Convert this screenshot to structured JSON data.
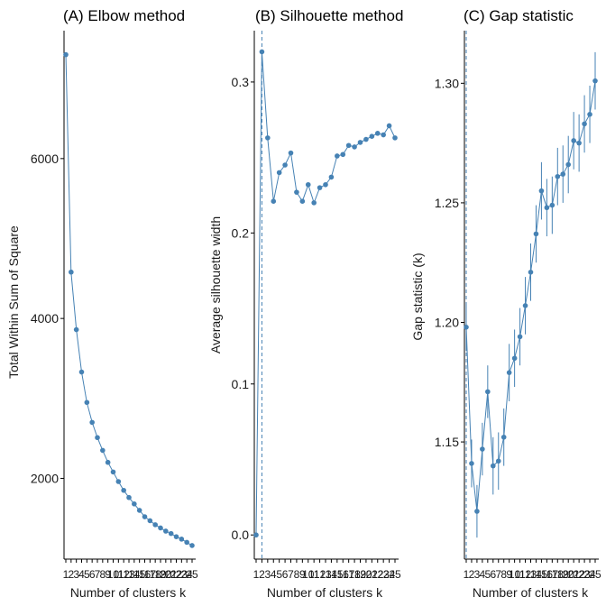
{
  "colors": {
    "series": "#4682b4",
    "axis": "#000000",
    "text": "#1a1a1a"
  },
  "chart_data": [
    {
      "type": "line",
      "title": "(A) Elbow method",
      "xlabel": "Number of clusters k",
      "ylabel": "Total Within Sum of Square",
      "x": [
        "1",
        "2",
        "3",
        "4",
        "5",
        "6",
        "7",
        "8",
        "9",
        "10",
        "11",
        "12",
        "13",
        "14",
        "15",
        "16",
        "17",
        "18",
        "19",
        "20",
        "21",
        "22",
        "23",
        "24",
        "25"
      ],
      "values": [
        7300,
        4580,
        3860,
        3330,
        2950,
        2700,
        2510,
        2350,
        2200,
        2080,
        1960,
        1850,
        1760,
        1680,
        1600,
        1520,
        1470,
        1420,
        1380,
        1340,
        1310,
        1270,
        1240,
        1200,
        1160
      ],
      "ylim": [
        990,
        7600
      ],
      "yticks": [
        2000,
        4000,
        6000
      ],
      "ytick_labels": [
        "2000",
        "4000",
        "6000"
      ],
      "grid": false
    },
    {
      "type": "line",
      "title": "(B) Silhouette method",
      "xlabel": "Number of clusters k",
      "ylabel": "Average silhouette width",
      "x": [
        "1",
        "2",
        "3",
        "4",
        "5",
        "6",
        "7",
        "8",
        "9",
        "10",
        "11",
        "12",
        "13",
        "14",
        "15",
        "16",
        "17",
        "18",
        "19",
        "20",
        "21",
        "22",
        "23",
        "24",
        "25"
      ],
      "values": [
        0.0,
        0.32,
        0.263,
        0.221,
        0.24,
        0.245,
        0.253,
        0.227,
        0.221,
        0.232,
        0.22,
        0.23,
        0.232,
        0.237,
        0.251,
        0.252,
        0.258,
        0.257,
        0.26,
        0.262,
        0.264,
        0.266,
        0.265,
        0.271,
        0.263
      ],
      "optimal_k": "2",
      "ylim": [
        -0.016,
        0.334
      ],
      "yticks": [
        0.0,
        0.1,
        0.2,
        0.3
      ],
      "ytick_labels": [
        "0.0",
        "0.1",
        "0.2",
        "0.3"
      ],
      "grid": false
    },
    {
      "type": "line",
      "title": "(C) Gap statistic",
      "xlabel": "Number of clusters k",
      "ylabel": "Gap statistic (k)",
      "x": [
        "1",
        "2",
        "3",
        "4",
        "5",
        "6",
        "7",
        "8",
        "9",
        "10",
        "11",
        "12",
        "13",
        "14",
        "15",
        "16",
        "17",
        "18",
        "19",
        "20",
        "21",
        "22",
        "23",
        "24",
        "25"
      ],
      "values": [
        1.198,
        1.141,
        1.121,
        1.147,
        1.171,
        1.14,
        1.142,
        1.152,
        1.179,
        1.185,
        1.194,
        1.207,
        1.221,
        1.237,
        1.255,
        1.248,
        1.249,
        1.261,
        1.262,
        1.266,
        1.276,
        1.275,
        1.283,
        1.287,
        1.301
      ],
      "error": [
        0.01,
        0.01,
        0.011,
        0.011,
        0.011,
        0.012,
        0.012,
        0.012,
        0.012,
        0.012,
        0.012,
        0.012,
        0.012,
        0.012,
        0.012,
        0.012,
        0.012,
        0.012,
        0.012,
        0.012,
        0.012,
        0.012,
        0.012,
        0.012,
        0.012
      ],
      "optimal_k": "1",
      "ylim": [
        1.101,
        1.322
      ],
      "yticks": [
        1.15,
        1.2,
        1.25,
        1.3
      ],
      "ytick_labels": [
        "1.15",
        "1.20",
        "1.25",
        "1.30"
      ],
      "grid": false
    }
  ]
}
